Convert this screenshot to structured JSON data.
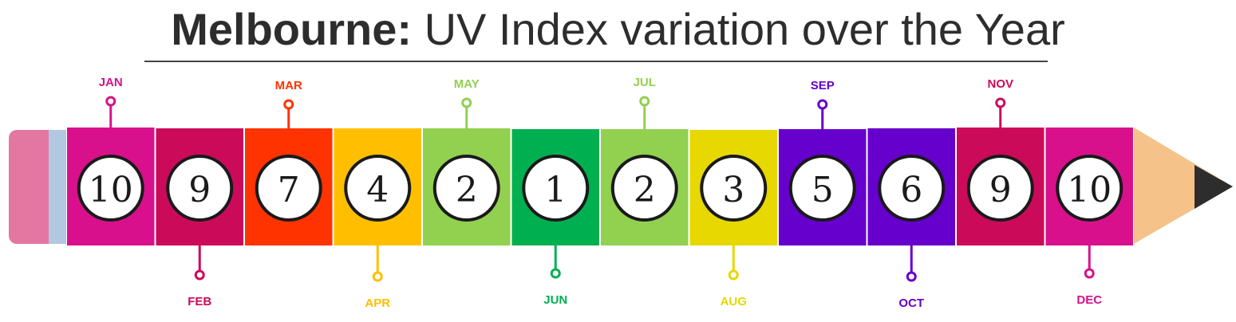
{
  "title": {
    "bold": "Melbourne:",
    "rest": "UV Index variation over the Year"
  },
  "chart_data": {
    "type": "bar",
    "title": "Melbourne: UV Index variation over the Year",
    "categories": [
      "JAN",
      "FEB",
      "MAR",
      "APR",
      "MAY",
      "JUN",
      "JUL",
      "AUG",
      "SEP",
      "OCT",
      "NOV",
      "DEC"
    ],
    "values": [
      10,
      9,
      7,
      4,
      2,
      1,
      2,
      3,
      5,
      6,
      9,
      10
    ],
    "colors": [
      "#d9108c",
      "#cc0a5a",
      "#ff3300",
      "#ffbf00",
      "#92d050",
      "#00b050",
      "#92d050",
      "#e6d800",
      "#6600cc",
      "#6600cc",
      "#cc0a5a",
      "#d9108c"
    ],
    "label_positions": [
      "top",
      "bottom",
      "top",
      "bottom",
      "top",
      "bottom",
      "top",
      "bottom",
      "top",
      "bottom",
      "top",
      "bottom"
    ],
    "colors_extra": {
      "eraser": "#e377a1",
      "ferrule": "#b4c7e0",
      "wood": "#f5c28a",
      "lead": "#2d2d2d"
    }
  }
}
